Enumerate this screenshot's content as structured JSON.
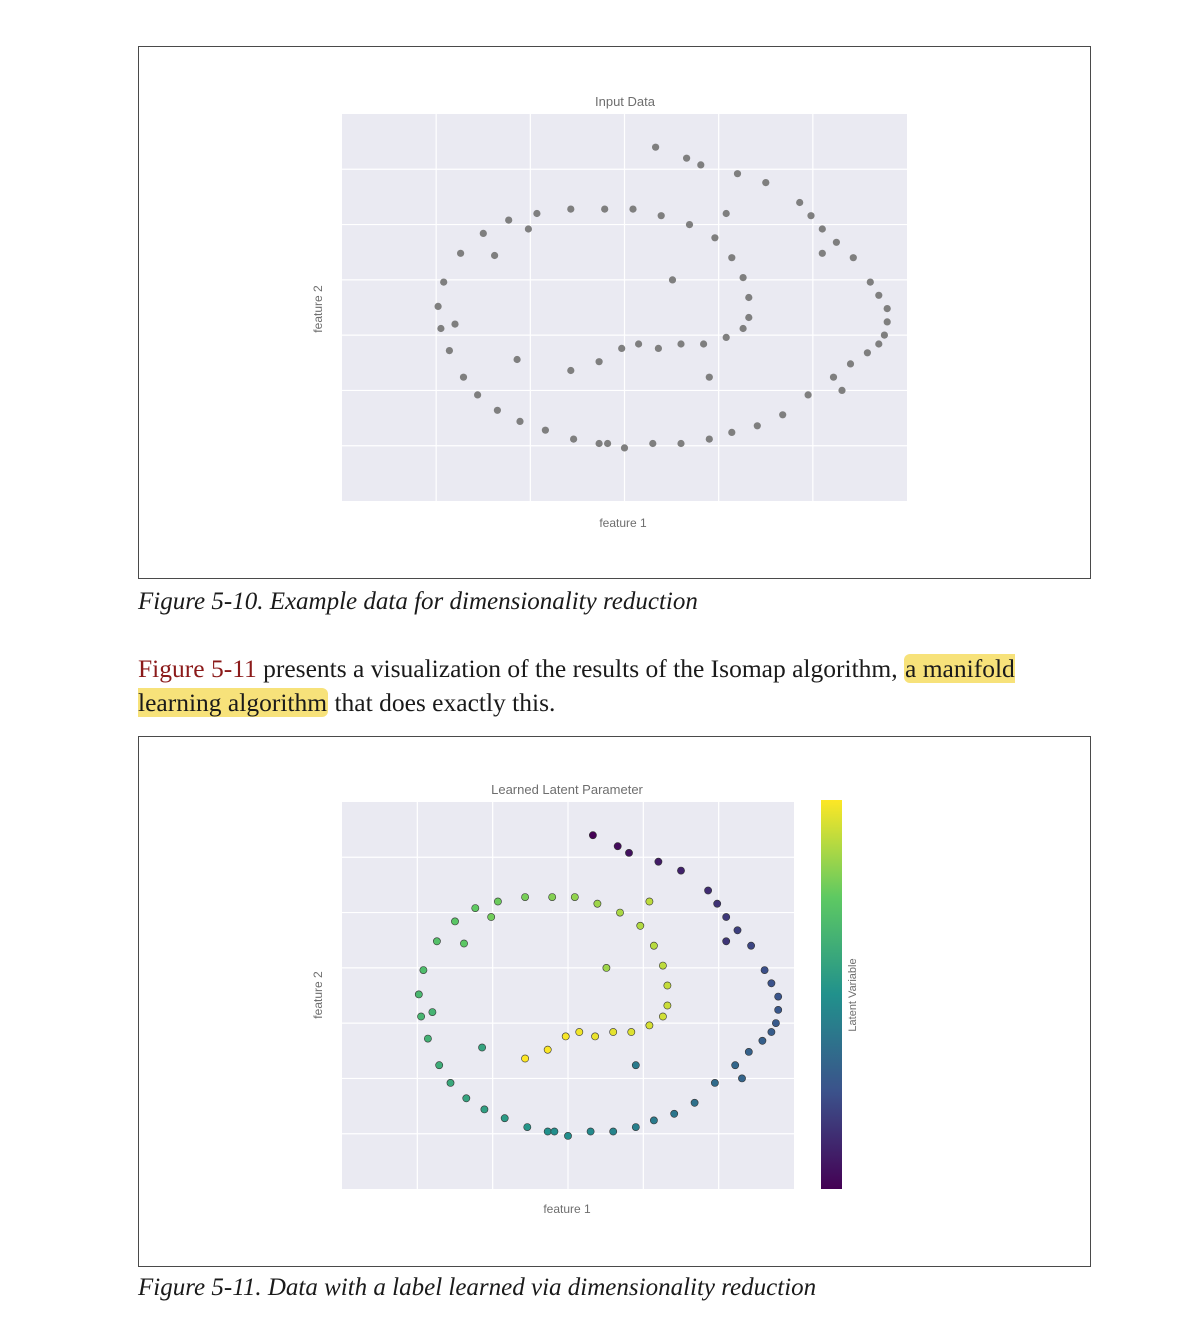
{
  "paragraph": {
    "link_text": "Figure 5-11",
    "text_before_highlight": " presents a visualization of the results of the Isomap algorithm, ",
    "highlight_text": "a manifold learning algorithm",
    "text_after_highlight": " that does exactly this."
  },
  "captions": {
    "fig1": "Figure 5-10. Example data for dimensionality reduction",
    "fig2": "Figure 5-11. Data with a label learned via dimensionality reduction"
  },
  "colors": {
    "plot_background": "#eaeaf2",
    "grid": "#ffffff",
    "input_points": "#7f7f7f",
    "highlight": "#f7e27a",
    "link": "#8b1a1a"
  },
  "chart_data": [
    {
      "type": "scatter",
      "title": "Input Data",
      "xlabel": "feature 1",
      "ylabel": "feature 2",
      "grid": true,
      "xlim": [
        -1.0,
        1.0
      ],
      "ylim": [
        -0.9,
        0.85
      ],
      "tick_labels_visible": false,
      "point_color": "#7f7f7f",
      "x": [
        0.11,
        0.22,
        0.27,
        0.4,
        0.5,
        0.62,
        0.66,
        0.7,
        0.75,
        0.81,
        0.87,
        0.9,
        0.93,
        0.93,
        0.92,
        0.9,
        0.86,
        0.8,
        0.74,
        0.65,
        0.56,
        0.47,
        0.38,
        0.3,
        0.2,
        0.1,
        0.0,
        -0.09,
        -0.18,
        -0.28,
        -0.37,
        -0.45,
        -0.52,
        -0.57,
        -0.62,
        -0.65,
        -0.66,
        -0.64,
        -0.58,
        -0.5,
        -0.41,
        -0.31,
        -0.19,
        -0.07,
        0.03,
        0.13,
        0.23,
        0.32,
        0.38,
        0.42,
        0.44,
        0.44,
        0.42,
        0.36,
        0.28,
        0.2,
        0.12,
        0.05,
        -0.01,
        -0.09,
        -0.19,
        -0.34,
        -0.46,
        -0.38,
        -0.06,
        0.3,
        0.7,
        0.77,
        -0.6,
        0.36,
        0.17
      ],
      "y": [
        0.7,
        0.65,
        0.62,
        0.58,
        0.54,
        0.45,
        0.39,
        0.33,
        0.27,
        0.2,
        0.09,
        0.03,
        -0.03,
        -0.09,
        -0.15,
        -0.19,
        -0.23,
        -0.28,
        -0.34,
        -0.42,
        -0.51,
        -0.56,
        -0.59,
        -0.62,
        -0.64,
        -0.64,
        -0.66,
        -0.64,
        -0.62,
        -0.58,
        -0.54,
        -0.49,
        -0.42,
        -0.34,
        -0.22,
        -0.12,
        -0.02,
        0.09,
        0.22,
        0.31,
        0.37,
        0.4,
        0.42,
        0.42,
        0.42,
        0.39,
        0.35,
        0.29,
        0.2,
        0.11,
        0.02,
        -0.07,
        -0.12,
        -0.16,
        -0.19,
        -0.19,
        -0.21,
        -0.19,
        -0.21,
        -0.27,
        -0.31,
        0.33,
        0.21,
        -0.26,
        -0.64,
        -0.34,
        0.22,
        -0.4,
        -0.1,
        0.4,
        0.1
      ]
    },
    {
      "type": "scatter",
      "title": "Learned Latent Parameter",
      "xlabel": "feature 1",
      "ylabel": "feature 2",
      "colorbar_label": "Latent Variable",
      "colormap": "viridis",
      "colormap_stops": [
        "#440154",
        "#3b528b",
        "#21918c",
        "#5ec962",
        "#fde725"
      ],
      "grid": true,
      "xlim": [
        -1.0,
        1.0
      ],
      "ylim": [
        -0.9,
        0.85
      ],
      "tick_labels_visible": false,
      "x": [
        0.11,
        0.22,
        0.27,
        0.4,
        0.5,
        0.62,
        0.66,
        0.7,
        0.75,
        0.81,
        0.87,
        0.9,
        0.93,
        0.93,
        0.92,
        0.9,
        0.86,
        0.8,
        0.74,
        0.65,
        0.56,
        0.47,
        0.38,
        0.3,
        0.2,
        0.1,
        0.0,
        -0.09,
        -0.18,
        -0.28,
        -0.37,
        -0.45,
        -0.52,
        -0.57,
        -0.62,
        -0.65,
        -0.66,
        -0.64,
        -0.58,
        -0.5,
        -0.41,
        -0.31,
        -0.19,
        -0.07,
        0.03,
        0.13,
        0.23,
        0.32,
        0.38,
        0.42,
        0.44,
        0.44,
        0.42,
        0.36,
        0.28,
        0.2,
        0.12,
        0.05,
        -0.01,
        -0.09,
        -0.19,
        -0.34,
        -0.46,
        -0.38,
        -0.06,
        0.3,
        0.7,
        0.77,
        -0.6,
        0.36,
        0.17
      ],
      "y": [
        0.7,
        0.65,
        0.62,
        0.58,
        0.54,
        0.45,
        0.39,
        0.33,
        0.27,
        0.2,
        0.09,
        0.03,
        -0.03,
        -0.09,
        -0.15,
        -0.19,
        -0.23,
        -0.28,
        -0.34,
        -0.42,
        -0.51,
        -0.56,
        -0.59,
        -0.62,
        -0.64,
        -0.64,
        -0.66,
        -0.64,
        -0.62,
        -0.58,
        -0.54,
        -0.49,
        -0.42,
        -0.34,
        -0.22,
        -0.12,
        -0.02,
        0.09,
        0.22,
        0.31,
        0.37,
        0.4,
        0.42,
        0.42,
        0.42,
        0.39,
        0.35,
        0.29,
        0.2,
        0.11,
        0.02,
        -0.07,
        -0.12,
        -0.16,
        -0.19,
        -0.19,
        -0.21,
        -0.19,
        -0.21,
        -0.27,
        -0.31,
        0.33,
        0.21,
        -0.26,
        -0.64,
        -0.34,
        0.22,
        -0.4,
        -0.1,
        0.4,
        0.1
      ],
      "latent": [
        0.0,
        0.03,
        0.05,
        0.08,
        0.1,
        0.13,
        0.15,
        0.17,
        0.19,
        0.21,
        0.24,
        0.25,
        0.26,
        0.27,
        0.28,
        0.29,
        0.3,
        0.31,
        0.33,
        0.35,
        0.37,
        0.39,
        0.41,
        0.43,
        0.45,
        0.47,
        0.49,
        0.5,
        0.52,
        0.54,
        0.56,
        0.58,
        0.6,
        0.62,
        0.64,
        0.66,
        0.67,
        0.69,
        0.71,
        0.73,
        0.75,
        0.77,
        0.79,
        0.81,
        0.83,
        0.85,
        0.87,
        0.88,
        0.89,
        0.9,
        0.91,
        0.92,
        0.93,
        0.94,
        0.95,
        0.96,
        0.97,
        0.98,
        0.99,
        0.995,
        1.0,
        0.78,
        0.74,
        0.58,
        0.49,
        0.41,
        0.16,
        0.32,
        0.65,
        0.9,
        0.85
      ]
    }
  ]
}
